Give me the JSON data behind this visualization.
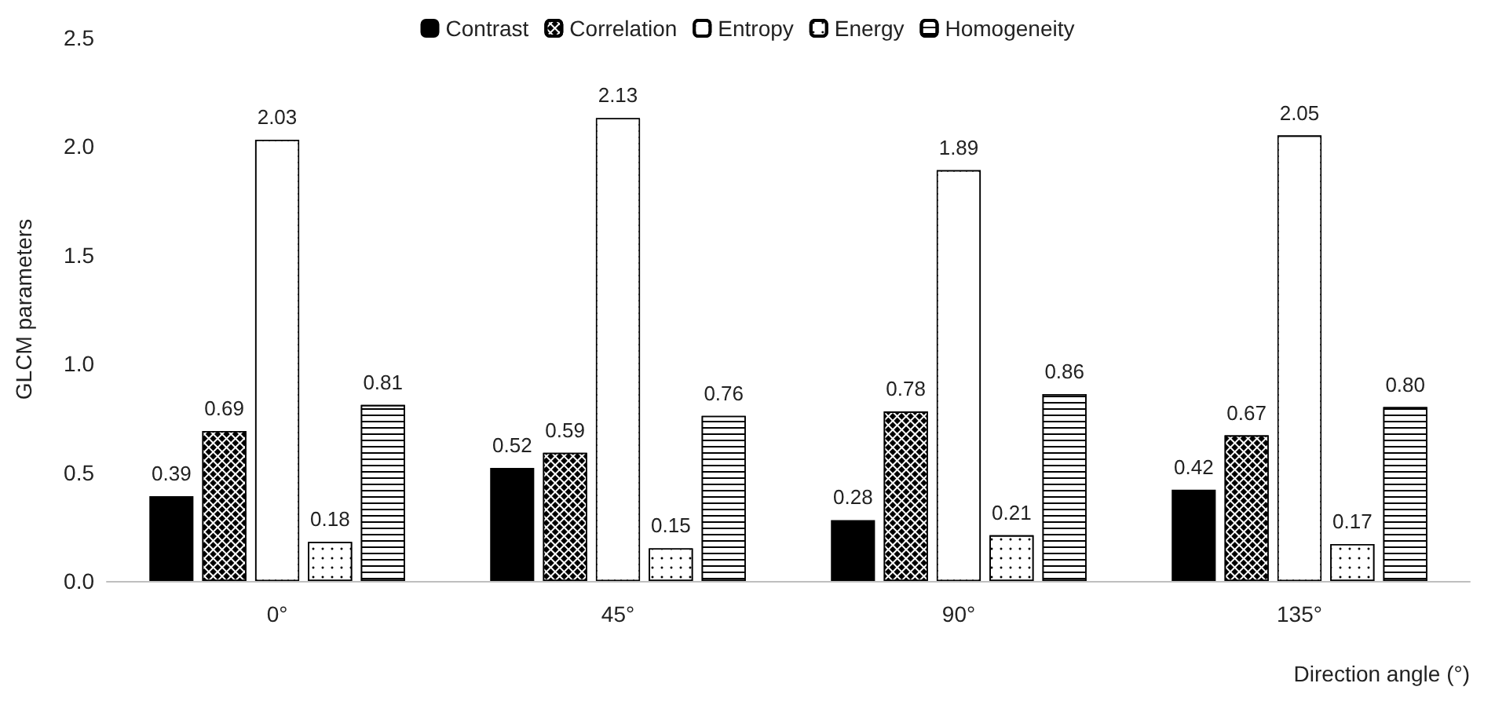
{
  "chart_data": {
    "type": "bar",
    "xlabel": "Direction angle (°)",
    "ylabel": "GLCM parameters",
    "categories": [
      "0°",
      "45°",
      "90°",
      "135°"
    ],
    "series": [
      {
        "name": "Contrast",
        "color": "#000000",
        "values": [
          0.39,
          0.52,
          0.28,
          0.42
        ],
        "value_labels": [
          "0.39",
          "0.52",
          "0.28",
          "0.42"
        ]
      },
      {
        "name": "Correlation",
        "color": "#ffffff",
        "values": [
          0.69,
          0.59,
          0.78,
          0.67
        ],
        "value_labels": [
          "0.69",
          "0.59",
          "0.78",
          "0.67"
        ]
      },
      {
        "name": "Entropy",
        "color": "#ffffff",
        "values": [
          2.03,
          2.13,
          1.89,
          2.05
        ],
        "value_labels": [
          "2.03",
          "2.13",
          "1.89",
          "2.05"
        ]
      },
      {
        "name": "Energy",
        "color": "#ffffff",
        "values": [
          0.18,
          0.15,
          0.21,
          0.17
        ],
        "value_labels": [
          "0.18",
          "0.15",
          "0.21",
          "0.17"
        ]
      },
      {
        "name": "Homogeneity",
        "color": "#ffffff",
        "values": [
          0.81,
          0.76,
          0.86,
          0.8
        ],
        "value_labels": [
          "0.81",
          "0.76",
          "0.86",
          "0.80"
        ]
      }
    ],
    "ylim": [
      0,
      2.5
    ],
    "yticks": [
      {
        "value": 0,
        "label": "0.0"
      },
      {
        "value": 0.5,
        "label": "0.5"
      },
      {
        "value": 1,
        "label": "1.0"
      },
      {
        "value": 1.5,
        "label": "1.5"
      },
      {
        "value": 2,
        "label": "2.0"
      },
      {
        "value": 2.5,
        "label": "2.5"
      }
    ],
    "grid": false,
    "legend": "top"
  }
}
